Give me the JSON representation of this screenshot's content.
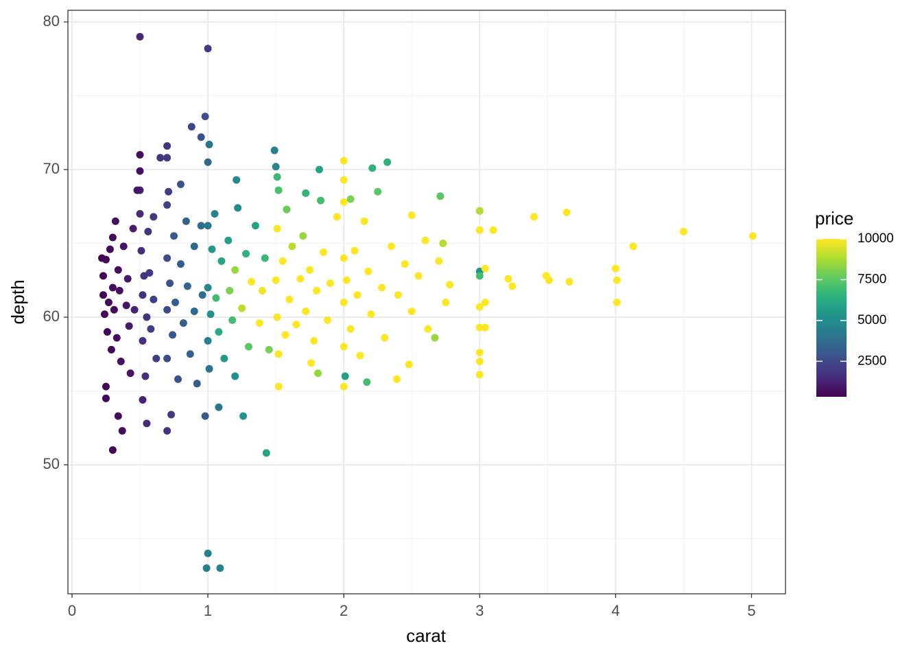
{
  "chart_data": {
    "type": "scatter",
    "x_label": "carat",
    "y_label": "depth",
    "color_label": "price",
    "xlim": [
      -0.03,
      5.25
    ],
    "ylim": [
      41.26,
      80.79
    ],
    "xticks": [
      0,
      1,
      2,
      3,
      4,
      5
    ],
    "yticks": [
      50,
      60,
      70,
      80
    ],
    "grid": true,
    "colorlim": [
      326,
      10000
    ],
    "color_ticks": [
      2500,
      5000,
      7500,
      10000
    ],
    "palette": [
      "#440154",
      "#472d7b",
      "#3b528b",
      "#2c728e",
      "#21918c",
      "#28ae80",
      "#5ec962",
      "#addc30",
      "#fde725"
    ],
    "x": [
      0.23,
      0.23,
      0.24,
      0.25,
      0.26,
      0.27,
      0.28,
      0.29,
      0.3,
      0.3,
      0.31,
      0.32,
      0.33,
      0.34,
      0.35,
      0.36,
      0.38,
      0.4,
      0.41,
      0.42,
      0.45,
      0.25,
      0.25,
      0.3,
      0.34,
      0.37,
      0.22,
      0.43,
      0.5,
      0.5,
      0.5,
      0.5,
      0.5,
      0.51,
      0.52,
      0.52,
      0.53,
      0.54,
      0.55,
      0.55,
      0.56,
      0.57,
      0.58,
      0.6,
      0.6,
      0.52,
      0.62,
      0.48,
      0.46,
      0.7,
      0.7,
      0.7,
      0.7,
      0.7,
      0.7,
      0.7,
      0.71,
      0.72,
      0.73,
      0.74,
      0.75,
      0.76,
      0.78,
      0.8,
      0.8,
      0.82,
      0.84,
      0.85,
      0.87,
      0.88,
      0.9,
      0.9,
      0.92,
      0.95,
      0.95,
      0.96,
      0.98,
      0.98,
      0.65,
      1.0,
      1.01,
      1.0,
      1.0,
      0.99,
      1.09,
      1.0,
      1.0,
      1.0,
      1.01,
      1.02,
      1.03,
      1.05,
      1.06,
      1.08,
      1.08,
      1.1,
      1.12,
      1.15,
      1.16,
      1.18,
      1.2,
      1.2,
      1.21,
      1.22,
      1.25,
      1.26,
      1.28,
      1.3,
      1.32,
      1.35,
      1.38,
      1.4,
      1.42,
      1.43,
      1.45,
      1.49,
      1.5,
      1.51,
      1.52,
      1.51,
      1.5,
      1.51,
      1.52,
      1.52,
      1.55,
      1.57,
      1.58,
      1.6,
      1.62,
      1.65,
      1.68,
      1.7,
      1.72,
      1.72,
      1.75,
      1.76,
      1.78,
      1.8,
      1.81,
      1.82,
      1.83,
      1.85,
      1.88,
      1.9,
      1.95,
      2.0,
      2.0,
      2.0,
      2.0,
      2.0,
      2.0,
      2.0,
      2.01,
      2.02,
      2.05,
      2.05,
      2.08,
      2.1,
      2.12,
      2.15,
      2.17,
      2.18,
      2.2,
      2.21,
      2.25,
      2.28,
      2.3,
      2.32,
      2.35,
      2.39,
      2.4,
      2.45,
      2.48,
      2.5,
      2.5,
      2.55,
      2.6,
      2.62,
      2.67,
      2.7,
      2.71,
      2.73,
      2.75,
      2.78,
      3.0,
      3.0,
      3.0,
      3.0,
      3.0,
      3.0,
      3.0,
      3.0,
      3.0,
      3.04,
      3.04,
      3.04,
      3.1,
      3.21,
      3.24,
      3.4,
      3.49,
      3.51,
      3.64,
      3.66,
      4.0,
      4.01,
      4.01,
      4.13,
      4.5,
      5.01
    ],
    "values": [
      61.5,
      62.8,
      60.2,
      63.9,
      59.0,
      61.0,
      64.6,
      57.8,
      62.0,
      65.4,
      60.5,
      66.5,
      58.6,
      63.2,
      61.8,
      57.0,
      64.8,
      60.8,
      62.6,
      59.4,
      66.0,
      54.5,
      55.3,
      51.0,
      53.3,
      52.3,
      64.0,
      56.2,
      71.0,
      69.9,
      79.0,
      68.6,
      67.0,
      64.5,
      61.5,
      58.4,
      62.8,
      56.0,
      60.0,
      52.8,
      65.8,
      63.0,
      59.2,
      61.2,
      66.8,
      54.4,
      57.2,
      68.6,
      60.5,
      71.6,
      70.8,
      67.6,
      64.0,
      60.5,
      57.2,
      52.3,
      68.5,
      62.3,
      53.4,
      58.8,
      65.5,
      61.0,
      55.8,
      63.6,
      69.0,
      59.6,
      66.5,
      62.1,
      57.5,
      72.9,
      64.8,
      60.4,
      55.5,
      72.2,
      66.2,
      61.5,
      73.6,
      53.3,
      70.8,
      78.2,
      71.7,
      70.5,
      44.0,
      43.0,
      43.0,
      66.2,
      62.0,
      58.4,
      56.5,
      60.2,
      64.6,
      67.0,
      61.3,
      53.9,
      59.0,
      63.8,
      57.2,
      65.2,
      61.8,
      59.8,
      63.2,
      56.0,
      69.3,
      67.4,
      60.6,
      53.3,
      64.3,
      58.0,
      62.4,
      66.2,
      59.6,
      61.8,
      64.0,
      50.8,
      57.8,
      71.3,
      70.2,
      69.5,
      68.6,
      66.0,
      62.5,
      60.0,
      57.5,
      55.3,
      63.8,
      58.8,
      67.3,
      61.2,
      64.8,
      59.5,
      62.6,
      65.5,
      60.4,
      68.4,
      63.2,
      56.9,
      58.4,
      61.8,
      56.2,
      70.0,
      67.9,
      64.4,
      59.8,
      62.3,
      66.8,
      70.6,
      69.3,
      67.8,
      64.0,
      61.0,
      58.0,
      55.3,
      56.0,
      62.5,
      68.0,
      59.2,
      64.5,
      61.5,
      57.4,
      66.5,
      55.6,
      63.1,
      60.2,
      70.1,
      68.5,
      62.0,
      58.6,
      70.5,
      64.8,
      55.8,
      61.5,
      63.6,
      56.8,
      66.9,
      60.4,
      62.8,
      65.2,
      59.2,
      58.6,
      63.8,
      68.2,
      65.0,
      61.0,
      62.2,
      67.2,
      65.9,
      63.1,
      62.8,
      60.7,
      59.3,
      57.6,
      57.0,
      56.1,
      61.0,
      59.3,
      63.3,
      65.9,
      62.6,
      62.1,
      66.8,
      62.8,
      62.5,
      67.1,
      62.4,
      63.3,
      62.5,
      61.0,
      64.8,
      65.8,
      65.5
    ],
    "price": [
      400,
      380,
      450,
      500,
      480,
      520,
      550,
      560,
      600,
      620,
      640,
      700,
      680,
      720,
      750,
      760,
      820,
      900,
      950,
      1000,
      1100,
      420,
      430,
      500,
      560,
      600,
      380,
      900,
      700,
      750,
      1400,
      1200,
      1500,
      1600,
      1700,
      1600,
      1800,
      1700,
      1900,
      1500,
      1800,
      2000,
      2100,
      2200,
      2000,
      1300,
      2100,
      900,
      1300,
      1800,
      2000,
      2300,
      2500,
      2600,
      2500,
      1700,
      2100,
      2800,
      2000,
      2900,
      3000,
      3100,
      2800,
      3200,
      2800,
      3300,
      3400,
      3500,
      3400,
      2400,
      3600,
      3700,
      3000,
      2700,
      3800,
      3900,
      2600,
      3000,
      1900,
      2000,
      4000,
      3600,
      4500,
      4300,
      4600,
      4200,
      4800,
      4500,
      4000,
      5200,
      5500,
      4600,
      7000,
      4200,
      6200,
      6000,
      5500,
      5800,
      8000,
      7000,
      8500,
      5200,
      4800,
      5000,
      9000,
      5300,
      6500,
      7500,
      10500,
      6000,
      11000,
      9800,
      6800,
      6000,
      8000,
      4500,
      4800,
      6800,
      7200,
      11000,
      10000,
      12000,
      11500,
      12000,
      12500,
      11000,
      7800,
      13000,
      9000,
      12000,
      13000,
      8500,
      14000,
      6600,
      11000,
      10500,
      12000,
      13500,
      8400,
      6000,
      7000,
      12000,
      14000,
      15000,
      10500,
      12000,
      10800,
      13000,
      15000,
      16000,
      14500,
      12000,
      5800,
      15500,
      8000,
      16000,
      14000,
      16500,
      14000,
      10000,
      7000,
      17000,
      15000,
      6500,
      7500,
      16000,
      15000,
      6500,
      13000,
      11000,
      17000,
      16000,
      12000,
      10500,
      17500,
      16000,
      14000,
      15000,
      8500,
      17000,
      7500,
      8900,
      16000,
      15000,
      8800,
      12000,
      5200,
      7000,
      13000,
      12000,
      11000,
      10000,
      12500,
      15000,
      14000,
      16000,
      14000,
      15000,
      16000,
      15500,
      17000,
      16500,
      16000,
      17000,
      16000,
      17000,
      15000,
      17500,
      18500,
      18000
    ]
  }
}
